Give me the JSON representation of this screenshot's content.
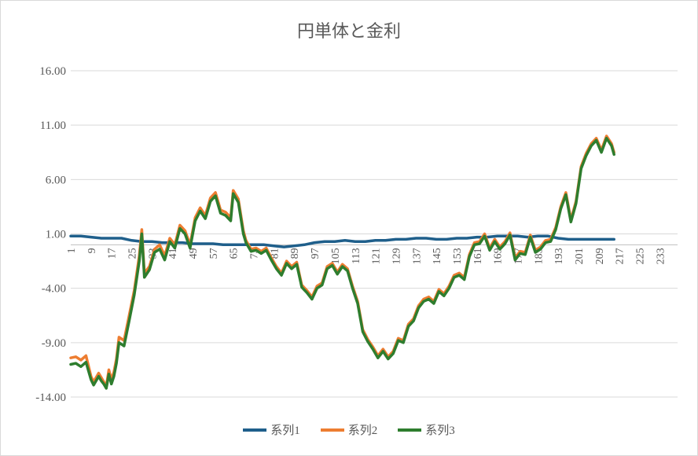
{
  "chart_data": {
    "type": "line",
    "title": "円単体と金利",
    "xlabel": "",
    "ylabel": "",
    "ylim": [
      -14,
      16
    ],
    "xlim": [
      1,
      240
    ],
    "yticks": [
      16,
      11,
      6,
      1,
      -4,
      -9,
      -14
    ],
    "ytick_labels": [
      "16.00",
      "11.00",
      "6.00",
      "1.00",
      "-4.00",
      "-9.00",
      "-14.00"
    ],
    "xtick_labels": [
      "1",
      "9",
      "17",
      "25",
      "33",
      "41",
      "49",
      "57",
      "65",
      "73",
      "81",
      "89",
      "97",
      "105",
      "113",
      "121",
      "129",
      "137",
      "145",
      "153",
      "161",
      "169",
      "177",
      "185",
      "193",
      "201",
      "209",
      "217",
      "225",
      "233"
    ],
    "grid": true,
    "legend_position": "bottom",
    "series": [
      {
        "name": "系列1",
        "color": "#1f5f8b",
        "x": [
          1,
          5,
          9,
          13,
          17,
          21,
          25,
          29,
          33,
          37,
          41,
          45,
          49,
          53,
          57,
          61,
          65,
          69,
          73,
          77,
          81,
          85,
          89,
          93,
          97,
          101,
          105,
          109,
          113,
          117,
          121,
          125,
          129,
          133,
          137,
          141,
          145,
          149,
          153,
          157,
          161,
          165,
          169,
          173,
          177,
          181,
          185,
          189,
          193,
          197,
          201,
          205,
          209,
          213,
          215
        ],
        "values": [
          0.8,
          0.8,
          0.7,
          0.6,
          0.6,
          0.6,
          0.4,
          0.3,
          0.3,
          0.2,
          0.2,
          0.2,
          0.1,
          0.1,
          0.1,
          0.0,
          0.0,
          0.0,
          0.0,
          0.0,
          -0.1,
          -0.2,
          -0.1,
          0.0,
          0.2,
          0.3,
          0.3,
          0.4,
          0.3,
          0.3,
          0.4,
          0.4,
          0.5,
          0.5,
          0.6,
          0.6,
          0.5,
          0.5,
          0.6,
          0.6,
          0.7,
          0.7,
          0.8,
          0.8,
          0.8,
          0.7,
          0.8,
          0.8,
          0.6,
          0.5,
          0.5,
          0.5,
          0.5,
          0.5,
          0.5
        ]
      },
      {
        "name": "系列2",
        "color": "#ed7d31",
        "x": [
          1,
          3,
          5,
          7,
          9,
          10,
          12,
          13,
          14,
          15,
          16,
          17,
          18,
          19,
          20,
          22,
          24,
          26,
          28,
          29,
          30,
          32,
          34,
          36,
          38,
          40,
          42,
          44,
          46,
          48,
          50,
          52,
          54,
          56,
          58,
          60,
          62,
          64,
          65,
          67,
          69,
          70,
          72,
          74,
          76,
          78,
          80,
          82,
          84,
          86,
          88,
          90,
          92,
          94,
          96,
          98,
          100,
          102,
          104,
          106,
          108,
          110,
          112,
          114,
          116,
          118,
          120,
          122,
          124,
          126,
          128,
          130,
          132,
          134,
          136,
          138,
          140,
          142,
          144,
          146,
          148,
          150,
          152,
          154,
          156,
          158,
          160,
          162,
          164,
          166,
          168,
          170,
          172,
          174,
          176,
          178,
          180,
          182,
          184,
          186,
          188,
          190,
          192,
          194,
          196,
          198,
          200,
          202,
          204,
          206,
          208,
          210,
          212,
          214,
          215
        ],
        "values": [
          -10.4,
          -10.3,
          -10.6,
          -10.2,
          -12.1,
          -12.6,
          -11.8,
          -12.2,
          -12.6,
          -13.0,
          -11.5,
          -12.4,
          -11.7,
          -10.5,
          -8.5,
          -8.8,
          -6.5,
          -4.2,
          -1.0,
          1.4,
          -2.6,
          -2.0,
          -0.4,
          0.0,
          -1.0,
          0.6,
          0.0,
          1.8,
          1.3,
          0.0,
          2.5,
          3.4,
          2.7,
          4.3,
          4.8,
          3.2,
          3.0,
          2.5,
          5.0,
          4.2,
          1.3,
          0.4,
          -0.4,
          -0.3,
          -0.6,
          -0.3,
          -1.2,
          -2.0,
          -2.6,
          -1.5,
          -2.0,
          -1.6,
          -3.7,
          -4.2,
          -4.8,
          -3.8,
          -3.5,
          -2.0,
          -1.7,
          -2.5,
          -1.8,
          -2.2,
          -3.8,
          -5.2,
          -7.8,
          -8.7,
          -9.4,
          -10.2,
          -9.6,
          -10.3,
          -9.8,
          -8.6,
          -8.8,
          -7.3,
          -6.8,
          -5.6,
          -5.0,
          -4.8,
          -5.2,
          -4.1,
          -4.5,
          -3.8,
          -2.8,
          -2.6,
          -3.0,
          -0.9,
          0.2,
          0.3,
          1.0,
          -0.3,
          0.5,
          -0.2,
          0.3,
          1.1,
          -1.2,
          -0.6,
          -0.7,
          0.9,
          -0.5,
          -0.2,
          0.4,
          0.5,
          1.6,
          3.5,
          4.8,
          2.3,
          4.0,
          7.2,
          8.4,
          9.3,
          9.8,
          8.7,
          10.0,
          9.3,
          8.5
        ]
      },
      {
        "name": "系列3",
        "color": "#2e7d2e",
        "x": [
          1,
          3,
          5,
          7,
          9,
          10,
          12,
          13,
          14,
          15,
          16,
          17,
          18,
          19,
          20,
          22,
          24,
          26,
          28,
          29,
          30,
          32,
          34,
          36,
          38,
          40,
          42,
          44,
          46,
          48,
          50,
          52,
          54,
          56,
          58,
          60,
          62,
          64,
          65,
          67,
          69,
          70,
          72,
          74,
          76,
          78,
          80,
          82,
          84,
          86,
          88,
          90,
          92,
          94,
          96,
          98,
          100,
          102,
          104,
          106,
          108,
          110,
          112,
          114,
          116,
          118,
          120,
          122,
          124,
          126,
          128,
          130,
          132,
          134,
          136,
          138,
          140,
          142,
          144,
          146,
          148,
          150,
          152,
          154,
          156,
          158,
          160,
          162,
          164,
          166,
          168,
          170,
          172,
          174,
          176,
          178,
          180,
          182,
          184,
          186,
          188,
          190,
          192,
          194,
          196,
          198,
          200,
          202,
          204,
          206,
          208,
          210,
          212,
          214,
          215
        ],
        "values": [
          -11.0,
          -10.9,
          -11.2,
          -10.8,
          -12.4,
          -12.9,
          -12.1,
          -12.5,
          -12.8,
          -13.2,
          -11.9,
          -12.8,
          -12.1,
          -10.9,
          -9.0,
          -9.3,
          -7.0,
          -4.6,
          -1.5,
          1.0,
          -3.0,
          -2.3,
          -0.7,
          -0.4,
          -1.4,
          0.3,
          -0.3,
          1.5,
          1.0,
          -0.3,
          2.2,
          3.1,
          2.4,
          4.0,
          4.5,
          2.9,
          2.7,
          2.2,
          4.7,
          3.9,
          1.0,
          0.2,
          -0.6,
          -0.5,
          -0.8,
          -0.5,
          -1.4,
          -2.2,
          -2.8,
          -1.7,
          -2.2,
          -1.8,
          -3.9,
          -4.4,
          -5.0,
          -4.0,
          -3.7,
          -2.2,
          -1.9,
          -2.7,
          -2.0,
          -2.4,
          -4.0,
          -5.4,
          -8.0,
          -8.9,
          -9.6,
          -10.4,
          -9.8,
          -10.5,
          -10.0,
          -8.8,
          -9.0,
          -7.5,
          -7.0,
          -5.8,
          -5.2,
          -5.0,
          -5.4,
          -4.3,
          -4.7,
          -4.0,
          -3.0,
          -2.8,
          -3.2,
          -1.1,
          0.0,
          0.1,
          0.8,
          -0.5,
          0.3,
          -0.4,
          0.1,
          0.9,
          -1.4,
          -0.8,
          -0.9,
          0.7,
          -0.7,
          -0.4,
          0.2,
          0.3,
          1.4,
          3.3,
          4.6,
          2.1,
          3.8,
          7.0,
          8.2,
          9.1,
          9.6,
          8.5,
          9.8,
          9.1,
          8.3
        ]
      }
    ]
  }
}
